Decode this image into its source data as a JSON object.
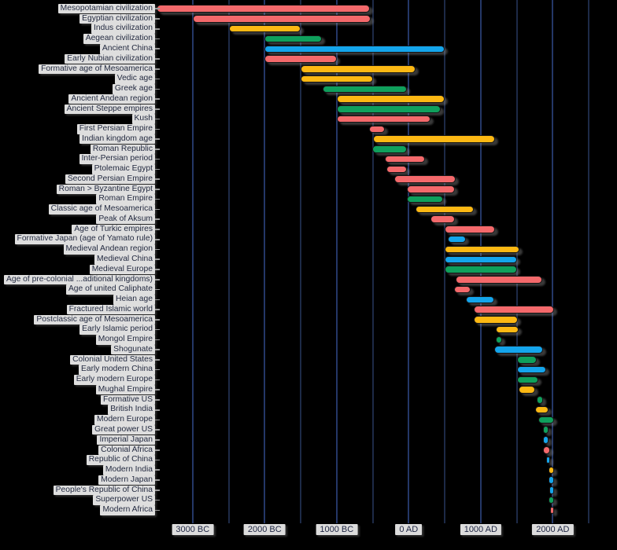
{
  "chart_data": {
    "type": "bar",
    "orientation": "horizontal-timeline",
    "description": "Timeline (Gantt-style) chart of world civilizations on black background; one rounded colored bar per civilization from start year to end year",
    "x_axis": {
      "ticks": [
        {
          "label": "3000 BC",
          "year": -3000
        },
        {
          "label": "2000 BC",
          "year": -2000
        },
        {
          "label": "1000 BC",
          "year": -1000
        },
        {
          "label": "0 AD",
          "year": 0
        },
        {
          "label": "1000 AD",
          "year": 1000
        },
        {
          "label": "2000 AD",
          "year": 2000
        }
      ],
      "gridline_step_years": 500,
      "gridline_range_years": [
        -3000,
        2500
      ],
      "xlim_years": [
        -3460,
        2890
      ],
      "grid": true
    },
    "legend": "none",
    "colors": {
      "red": "#F4696B",
      "yellow": "#FCB813",
      "green": "#0FA05C",
      "blue": "#14A5EC",
      "background": "#000000",
      "gridline_millennium": "#243767",
      "gridline_half": "#1d2a47",
      "label_box_bg": "#dedede",
      "label_text": "#232a40"
    },
    "bars": [
      {
        "label": "Mesopotamian civilization",
        "start_year": -3500,
        "end_year": -539,
        "color": "red"
      },
      {
        "label": "Egyptian civilization",
        "start_year": -3000,
        "end_year": -525,
        "color": "red"
      },
      {
        "label": "Indus civilization",
        "start_year": -2500,
        "end_year": -1500,
        "color": "yellow"
      },
      {
        "label": "Aegean civilization",
        "start_year": -2000,
        "end_year": -1200,
        "color": "green"
      },
      {
        "label": "Ancient China",
        "start_year": -2000,
        "end_year": 500,
        "color": "blue"
      },
      {
        "label": "Early Nubian civilization",
        "start_year": -2000,
        "end_year": -1000,
        "color": "red"
      },
      {
        "label": "Formative age of Mesoamerica",
        "start_year": -1500,
        "end_year": 100,
        "color": "yellow"
      },
      {
        "label": "Vedic age",
        "start_year": -1500,
        "end_year": -500,
        "color": "yellow"
      },
      {
        "label": "Greek age",
        "start_year": -1200,
        "end_year": -30,
        "color": "green"
      },
      {
        "label": "Ancient Andean region",
        "start_year": -1000,
        "end_year": 500,
        "color": "yellow"
      },
      {
        "label": "Ancient Steppe empires",
        "start_year": -1000,
        "end_year": 450,
        "color": "green"
      },
      {
        "label": "Kush",
        "start_year": -1000,
        "end_year": 300,
        "color": "red"
      },
      {
        "label": "First Persian Empire",
        "start_year": -550,
        "end_year": -330,
        "color": "red"
      },
      {
        "label": "Indian kingdom age",
        "start_year": -500,
        "end_year": 1200,
        "color": "yellow"
      },
      {
        "label": "Roman Republic",
        "start_year": -509,
        "end_year": -27,
        "color": "green"
      },
      {
        "label": "Inter-Persian period",
        "start_year": -330,
        "end_year": 224,
        "color": "red"
      },
      {
        "label": "Ptolemaic Egypt",
        "start_year": -305,
        "end_year": -30,
        "color": "red"
      },
      {
        "label": "Second Persian Empire",
        "start_year": -200,
        "end_year": 651,
        "color": "red"
      },
      {
        "label": "Roman > Byzantine Egypt",
        "start_year": -30,
        "end_year": 641,
        "color": "red"
      },
      {
        "label": "Roman Empire",
        "start_year": -27,
        "end_year": 476,
        "color": "green"
      },
      {
        "label": "Classic age of Mesoamerica",
        "start_year": 100,
        "end_year": 900,
        "color": "yellow"
      },
      {
        "label": "Peak of Aksum",
        "start_year": 300,
        "end_year": 640,
        "color": "red"
      },
      {
        "label": "Age of Turkic empires",
        "start_year": 500,
        "end_year": 1200,
        "color": "red"
      },
      {
        "label": "Formative Japan (age of Yamato rule)",
        "start_year": 538,
        "end_year": 794,
        "color": "blue"
      },
      {
        "label": "Medieval Andean region",
        "start_year": 500,
        "end_year": 1533,
        "color": "yellow"
      },
      {
        "label": "Medieval China",
        "start_year": 500,
        "end_year": 1500,
        "color": "blue"
      },
      {
        "label": "Medieval Europe",
        "start_year": 500,
        "end_year": 1500,
        "color": "green"
      },
      {
        "label": "Age of pre-colonial ...aditional kingdoms)",
        "start_year": 650,
        "end_year": 1860,
        "color": "red"
      },
      {
        "label": "Age of united Caliphate",
        "start_year": 632,
        "end_year": 861,
        "color": "red"
      },
      {
        "label": "Heian age",
        "start_year": 794,
        "end_year": 1185,
        "color": "blue"
      },
      {
        "label": "Fractured Islamic world",
        "start_year": 900,
        "end_year": 2020,
        "color": "red"
      },
      {
        "label": "Postclassic age of Mesoamerica",
        "start_year": 900,
        "end_year": 1521,
        "color": "yellow"
      },
      {
        "label": "Early Islamic period",
        "start_year": 1206,
        "end_year": 1526,
        "color": "yellow"
      },
      {
        "label": "Mongol Empire",
        "start_year": 1206,
        "end_year": 1294,
        "color": "green"
      },
      {
        "label": "Shogunate",
        "start_year": 1192,
        "end_year": 1868,
        "color": "blue"
      },
      {
        "label": "Colonial United States",
        "start_year": 1500,
        "end_year": 1776,
        "color": "green"
      },
      {
        "label": "Early modern China",
        "start_year": 1500,
        "end_year": 1912,
        "color": "blue"
      },
      {
        "label": "Early modern Europe",
        "start_year": 1500,
        "end_year": 1800,
        "color": "green"
      },
      {
        "label": "Mughal Empire",
        "start_year": 1526,
        "end_year": 1760,
        "color": "yellow"
      },
      {
        "label": "Formative US",
        "start_year": 1776,
        "end_year": 1865,
        "color": "green"
      },
      {
        "label": "British India",
        "start_year": 1757,
        "end_year": 1947,
        "color": "yellow"
      },
      {
        "label": "Modern Europe",
        "start_year": 1800,
        "end_year": 2020,
        "color": "green"
      },
      {
        "label": "Great power US",
        "start_year": 1865,
        "end_year": 1945,
        "color": "green"
      },
      {
        "label": "Imperial Japan",
        "start_year": 1868,
        "end_year": 1945,
        "color": "blue"
      },
      {
        "label": "Colonial Africa",
        "start_year": 1870,
        "end_year": 1960,
        "color": "red"
      },
      {
        "label": "Republic of China",
        "start_year": 1912,
        "end_year": 1949,
        "color": "blue"
      },
      {
        "label": "Modern India",
        "start_year": 1947,
        "end_year": 2020,
        "color": "yellow"
      },
      {
        "label": "Modern Japan",
        "start_year": 1945,
        "end_year": 2020,
        "color": "blue"
      },
      {
        "label": "People's Republic of China",
        "start_year": 1949,
        "end_year": 2020,
        "color": "blue"
      },
      {
        "label": "Superpower US",
        "start_year": 1945,
        "end_year": 2020,
        "color": "green"
      },
      {
        "label": "Modern Africa",
        "start_year": 1960,
        "end_year": 2020,
        "color": "red"
      }
    ]
  }
}
